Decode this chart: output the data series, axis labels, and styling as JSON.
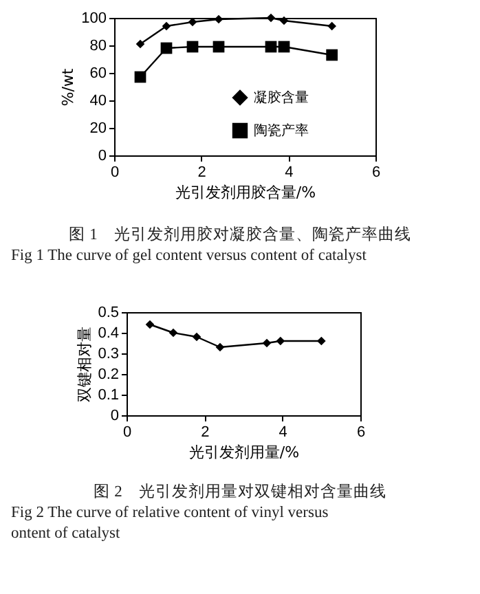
{
  "chart_data": [
    {
      "type": "line",
      "xlabel": "光引发剂用胶含量/%",
      "ylabel": "%/wt",
      "x": [
        0.6,
        1.2,
        1.8,
        2.4,
        3.6,
        3.9,
        5
      ],
      "series": [
        {
          "name": "凝胶含量",
          "color": "#000000",
          "marker": "diamond",
          "values": [
            81,
            94,
            97,
            99,
            100,
            98,
            94
          ]
        },
        {
          "name": "陶瓷产率",
          "color": "#000000",
          "marker": "square",
          "values": [
            57,
            78,
            79,
            79,
            79,
            79,
            73
          ]
        }
      ],
      "xlim": [
        0,
        6
      ],
      "xticks": [
        0,
        2,
        4,
        6
      ],
      "ylim": [
        0,
        100
      ],
      "yticks": [
        0,
        20,
        40,
        60,
        80,
        100
      ],
      "grid": false,
      "legend": "bottom",
      "line_style": "solid",
      "annotations": [
        "图 1　光引发剂用胶对凝胶含量、陶瓷产率曲线",
        "Fig 1 The curve of gel content versus content of catalyst"
      ]
    },
    {
      "type": "line",
      "xlabel": "光引发剂用量/%",
      "ylabel": "双键相对量",
      "x": [
        0.6,
        1.2,
        1.8,
        2.4,
        3.6,
        3.95,
        5
      ],
      "series": [
        {
          "color": "#000000",
          "marker": "diamond",
          "values": [
            0.44,
            0.4,
            0.38,
            0.33,
            0.35,
            0.36,
            0.36
          ]
        }
      ],
      "xlim": [
        0,
        6
      ],
      "xticks": [
        0,
        2,
        4,
        6
      ],
      "ylim": [
        0,
        0.5
      ],
      "yticks": [
        0,
        0.1,
        0.2,
        0.3,
        0.4,
        0.5
      ],
      "grid": false,
      "line_style": "solid",
      "annotations": [
        "图 2　光引发剂用量对双键相对含量曲线",
        "Fig 2 The curve of relative content of vinyl versus",
        "ontent of catalyst"
      ]
    }
  ]
}
